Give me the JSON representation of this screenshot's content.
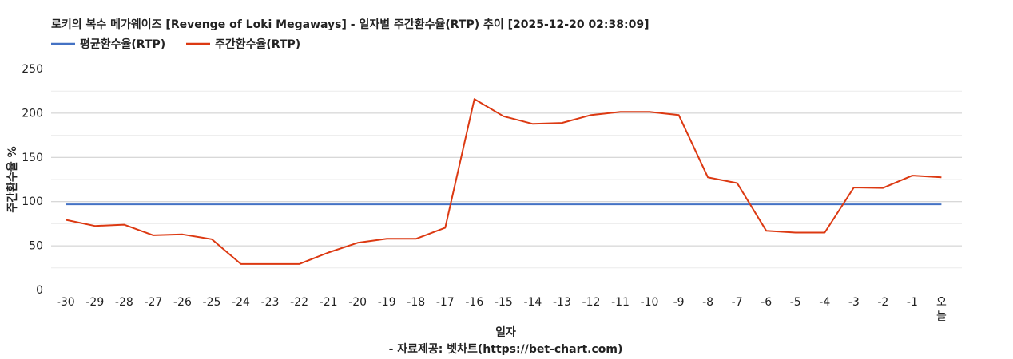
{
  "chart_data": {
    "type": "line",
    "title": "로키의 복수 메가웨이즈 [Revenge of Loki Megaways] - 일자별 주간환수율(RTP) 추이 [2025-12-20 02:38:09]",
    "xlabel": "일자",
    "ylabel": "주간환수율 %",
    "source": "- 자료제공: 벳차트(https://bet-chart.com)",
    "categories": [
      "-30",
      "-29",
      "-28",
      "-27",
      "-26",
      "-25",
      "-24",
      "-23",
      "-22",
      "-21",
      "-20",
      "-19",
      "-18",
      "-17",
      "-16",
      "-15",
      "-14",
      "-13",
      "-12",
      "-11",
      "-10",
      "-9",
      "-8",
      "-7",
      "-6",
      "-5",
      "-4",
      "-3",
      "-2",
      "-1",
      "오늘"
    ],
    "ylim": [
      0,
      250
    ],
    "yticks": [
      0,
      50,
      100,
      150,
      200,
      250
    ],
    "grid": true,
    "legend_position": "top-left",
    "series": [
      {
        "name": "평균환수율(RTP)",
        "color": "#4472c4",
        "values": [
          96.5,
          96.5,
          96.5,
          96.5,
          96.5,
          96.5,
          96.5,
          96.5,
          96.5,
          96.5,
          96.5,
          96.5,
          96.5,
          96.5,
          96.5,
          96.5,
          96.5,
          96.5,
          96.5,
          96.5,
          96.5,
          96.5,
          96.5,
          96.5,
          96.5,
          96.5,
          96.5,
          96.5,
          96.5,
          96.5,
          96.5
        ]
      },
      {
        "name": "주간환수율(RTP)",
        "color": "#dc3912",
        "values": [
          79,
          72,
          73.5,
          61.5,
          62.5,
          57,
          29,
          29,
          29,
          42,
          53,
          57.5,
          57.5,
          70,
          215.5,
          196,
          187.5,
          188.5,
          197.5,
          201,
          201,
          197.5,
          127,
          120.5,
          66.5,
          64.5,
          64.5,
          115.5,
          115,
          129,
          127
        ]
      }
    ]
  }
}
